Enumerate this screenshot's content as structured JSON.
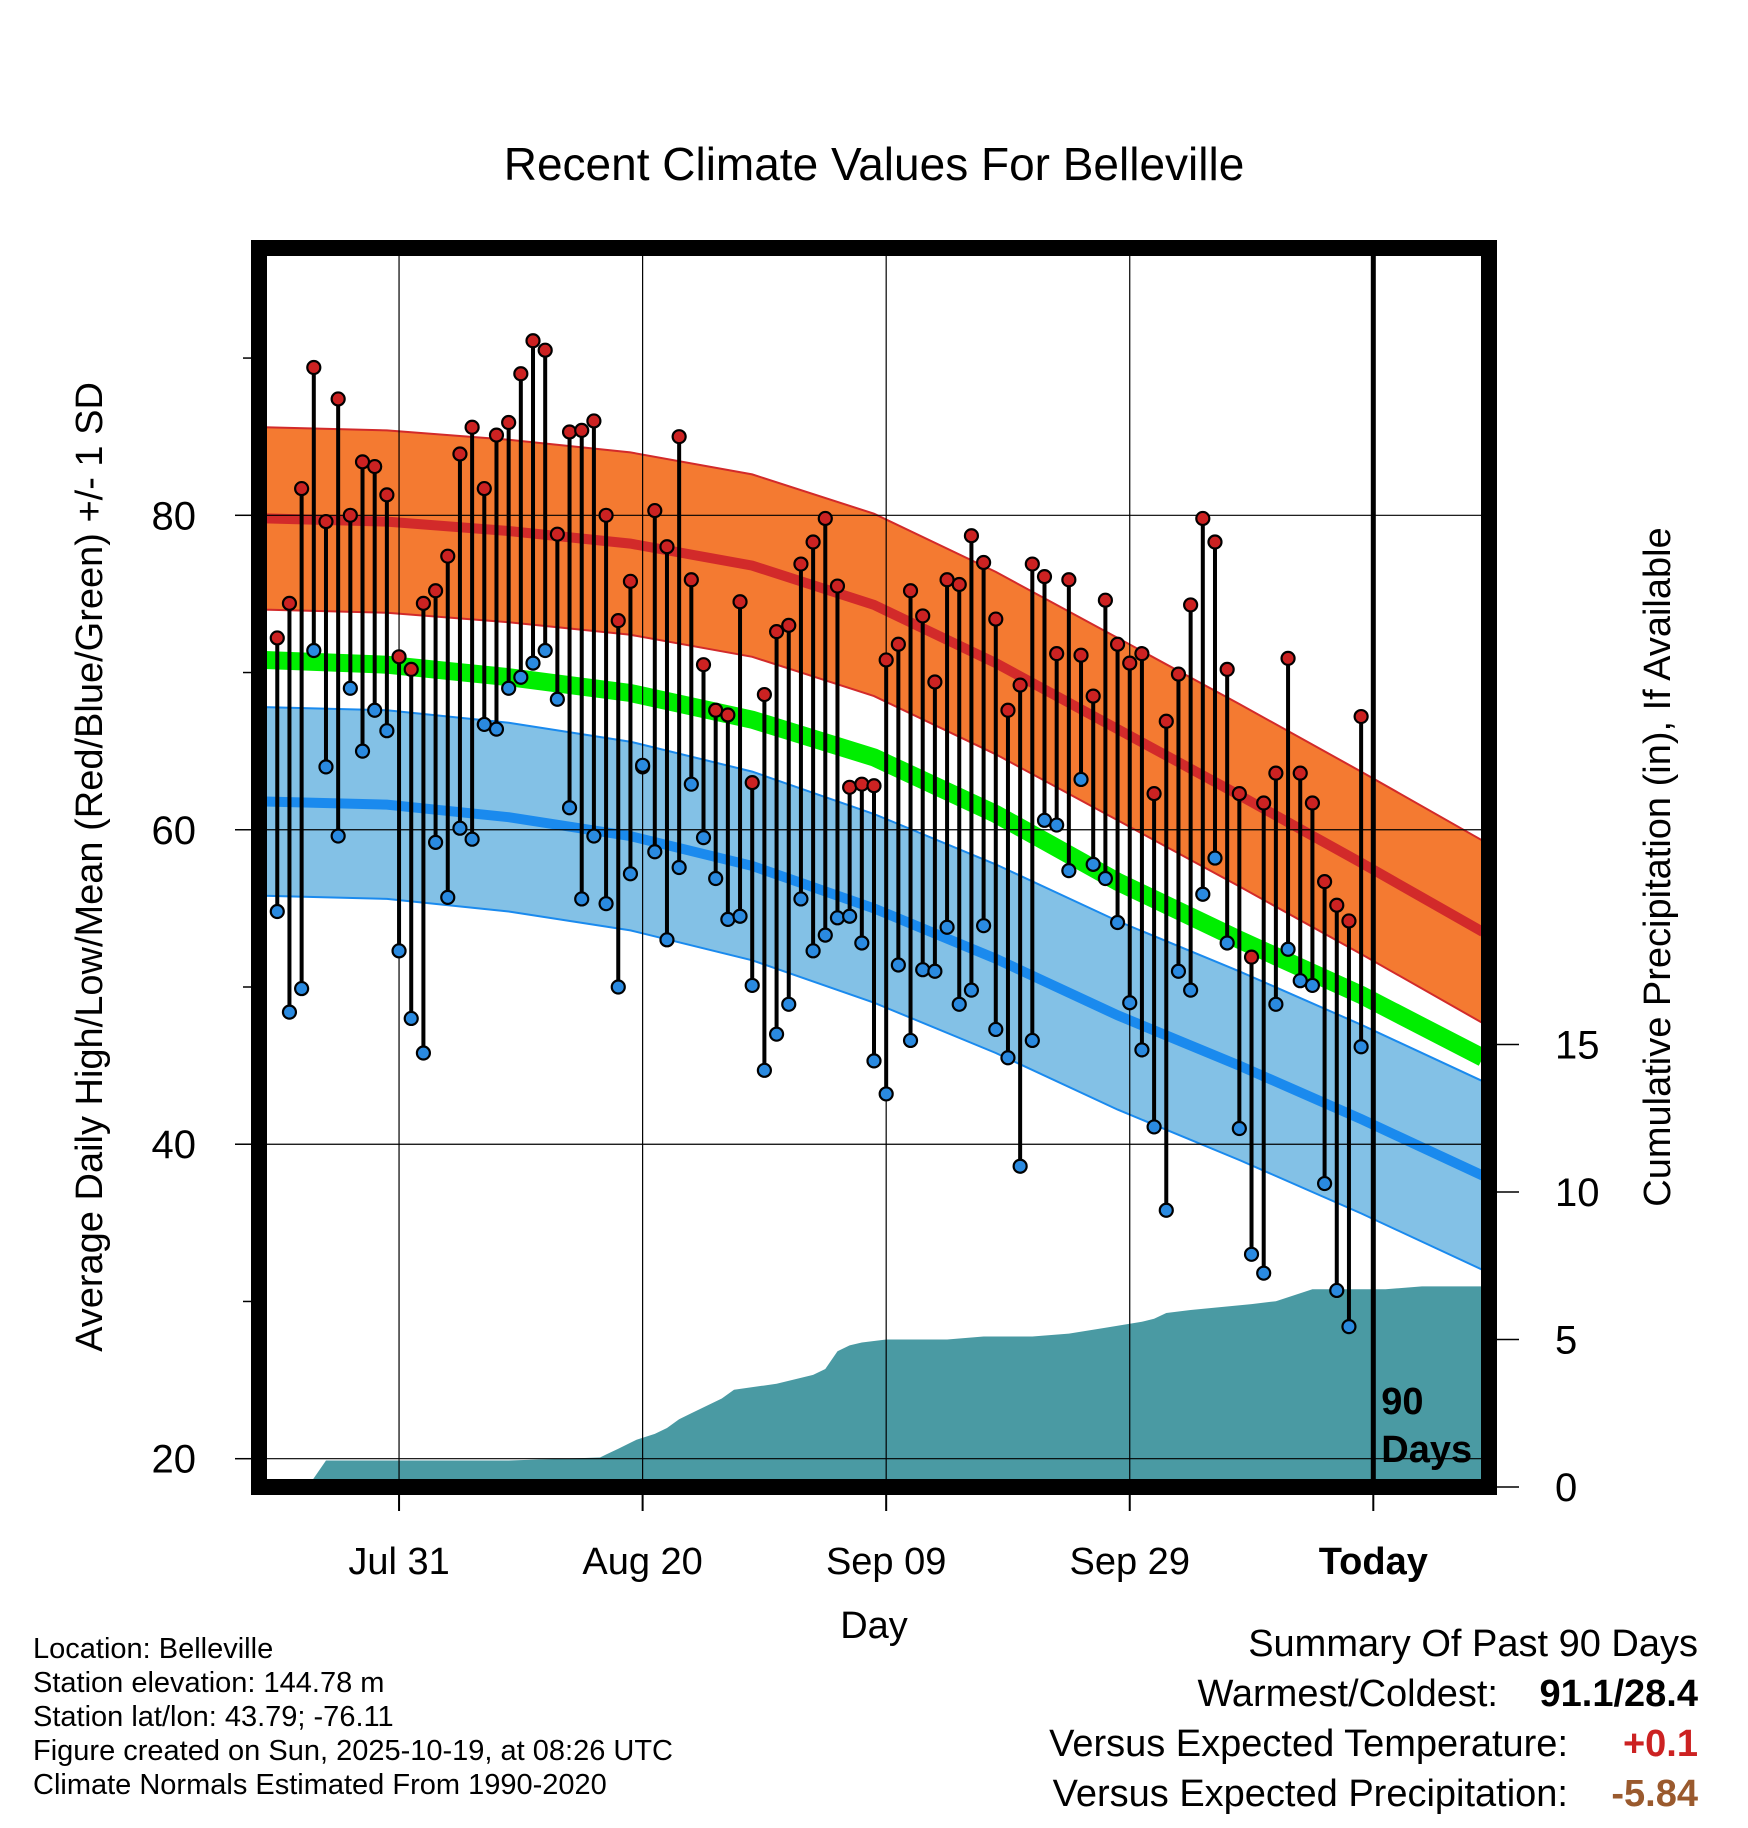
{
  "chart_data": {
    "type": "line",
    "title": "Recent Climate Values For Belleville",
    "xlabel": "Day",
    "ylabel": "Average Daily High/Low/Mean (Red/Blue/Green) +/- 1 SD",
    "y2label": "Cumulative Precipitation (in), If Available",
    "ylim": [
      18.2,
      97
    ],
    "y2lim": [
      0,
      42
    ],
    "xlim": [
      -11.5,
      89.5
    ],
    "x_ticks": [
      {
        "day": 0,
        "label": "Jul 31"
      },
      {
        "day": 20,
        "label": "Aug 20"
      },
      {
        "day": 40,
        "label": "Sep 09"
      },
      {
        "day": 60,
        "label": "Sep 29"
      },
      {
        "day": 80,
        "label": "Today"
      }
    ],
    "y_ticks": [
      20,
      40,
      60,
      80
    ],
    "y2_ticks": [
      0,
      5,
      10,
      15
    ],
    "period_label": "90 Days",
    "today_day": 80,
    "normals": {
      "days": [
        -11,
        -1,
        9,
        19,
        29,
        39,
        49,
        59,
        69,
        79,
        89
      ],
      "high_mean": [
        79.8,
        79.6,
        79.0,
        78.2,
        76.8,
        74.3,
        70.6,
        66.4,
        62.2,
        57.9,
        53.5
      ],
      "high_sd": 5.8,
      "low_mean": [
        61.8,
        61.6,
        60.8,
        59.6,
        57.7,
        55.0,
        51.8,
        48.2,
        45.0,
        41.6,
        38.0
      ],
      "low_sd": 6.0,
      "mean": [
        70.8,
        70.5,
        69.7,
        68.7,
        67.0,
        64.6,
        61.0,
        56.7,
        53.0,
        49.5,
        45.5
      ],
      "colors": {
        "high_band": "#f47a31",
        "high_line": "#d22a2a",
        "low_band": "#83c1e6",
        "low_line": "#1a8aee",
        "mean_line": "#00ee00"
      }
    },
    "series": [
      {
        "name": "Daily High",
        "color": "#cc2222",
        "values": [
          72.2,
          74.4,
          81.7,
          89.4,
          79.6,
          87.4,
          80.0,
          83.4,
          83.1,
          81.3,
          71.0,
          70.2,
          74.4,
          75.2,
          77.4,
          83.9,
          85.6,
          81.7,
          85.1,
          85.9,
          89.0,
          91.1,
          90.5,
          78.8,
          85.3,
          85.4,
          86.0,
          80.0,
          73.3,
          75.8,
          64.0,
          80.3,
          78.0,
          85.0,
          75.9,
          70.5,
          67.6,
          67.3,
          74.5,
          63.0,
          68.6,
          72.6,
          73.0,
          76.9,
          78.3,
          79.8,
          75.5,
          62.7,
          62.9,
          62.8,
          70.8,
          71.8,
          75.2,
          73.6,
          69.4,
          75.9,
          75.6,
          78.7,
          77.0,
          73.4,
          67.6,
          69.2,
          76.9,
          76.1,
          71.2,
          75.9,
          71.1,
          68.5,
          74.6,
          71.8,
          70.6,
          71.2,
          62.3,
          66.9,
          69.9,
          74.3,
          79.8,
          78.3,
          70.2,
          62.3,
          51.9,
          61.7,
          63.6,
          70.9,
          63.6,
          61.7,
          56.7,
          55.2,
          54.2,
          67.2
        ]
      },
      {
        "name": "Daily Low",
        "color": "#2a8ae0",
        "values": [
          54.8,
          48.4,
          49.9,
          71.4,
          64.0,
          59.6,
          69.0,
          65.0,
          67.6,
          66.3,
          52.3,
          48.0,
          45.8,
          59.2,
          55.7,
          60.1,
          59.4,
          66.7,
          66.4,
          69.0,
          69.7,
          70.6,
          71.4,
          68.3,
          61.4,
          55.6,
          59.6,
          55.3,
          50.0,
          57.2,
          64.1,
          58.6,
          53.0,
          57.6,
          62.9,
          59.5,
          56.9,
          54.3,
          54.5,
          50.1,
          44.7,
          47.0,
          48.9,
          55.6,
          52.3,
          53.3,
          54.4,
          54.5,
          52.8,
          45.3,
          43.2,
          51.4,
          46.6,
          51.1,
          51.0,
          53.8,
          48.9,
          49.8,
          53.9,
          47.3,
          45.5,
          38.6,
          46.6,
          60.6,
          60.3,
          57.4,
          63.2,
          57.8,
          56.9,
          54.1,
          49.0,
          46.0,
          41.1,
          35.8,
          51.0,
          49.8,
          55.9,
          58.2,
          52.8,
          41.0,
          33.0,
          31.8,
          48.9,
          52.4,
          50.4,
          50.1,
          37.5,
          30.7,
          28.4,
          46.2
        ]
      }
    ],
    "precip_cumulative": {
      "days": [
        -11,
        -7.5,
        -6,
        8,
        8.5,
        9,
        16.5,
        17,
        18,
        19,
        19.5,
        21,
        22,
        23,
        24,
        26.5,
        27.5,
        31,
        34,
        35,
        36,
        37,
        38,
        40,
        42,
        45,
        48,
        52,
        55,
        58,
        61,
        62,
        63,
        65,
        70,
        72,
        75,
        77,
        79,
        81,
        84,
        86,
        88,
        89.5
      ],
      "values": [
        0,
        0,
        0.9,
        0.9,
        0.9,
        0.9,
        1.0,
        1.1,
        1.3,
        1.5,
        1.6,
        1.8,
        2.0,
        2.3,
        2.5,
        3.0,
        3.3,
        3.5,
        3.8,
        4.0,
        4.6,
        4.8,
        4.9,
        5.0,
        5.0,
        5.0,
        5.1,
        5.1,
        5.2,
        5.4,
        5.6,
        5.7,
        5.9,
        6.0,
        6.2,
        6.3,
        6.7,
        6.7,
        6.7,
        6.7,
        6.8,
        6.8,
        6.8,
        6.8
      ],
      "color": "#4a9aa3"
    }
  },
  "footer": {
    "location": "Location: Belleville",
    "elevation": "Station elevation: 144.78 m",
    "latlon": "Station lat/lon: 43.79; -76.11",
    "created": "Figure created on Sun, 2025-10-19, at 08:26 UTC",
    "normals_note": "Climate Normals Estimated From 1990-2020"
  },
  "summary": {
    "heading": "Summary Of Past 90 Days",
    "warmest_label": "Warmest/Coldest:",
    "warmest_value": "91.1/28.4",
    "temp_label": "Versus Expected Temperature:",
    "temp_value": "+0.1",
    "temp_color": "#cc2222",
    "precip_label": "Versus Expected Precipitation:",
    "precip_value": "-5.84",
    "precip_color": "#9a5a2e"
  }
}
